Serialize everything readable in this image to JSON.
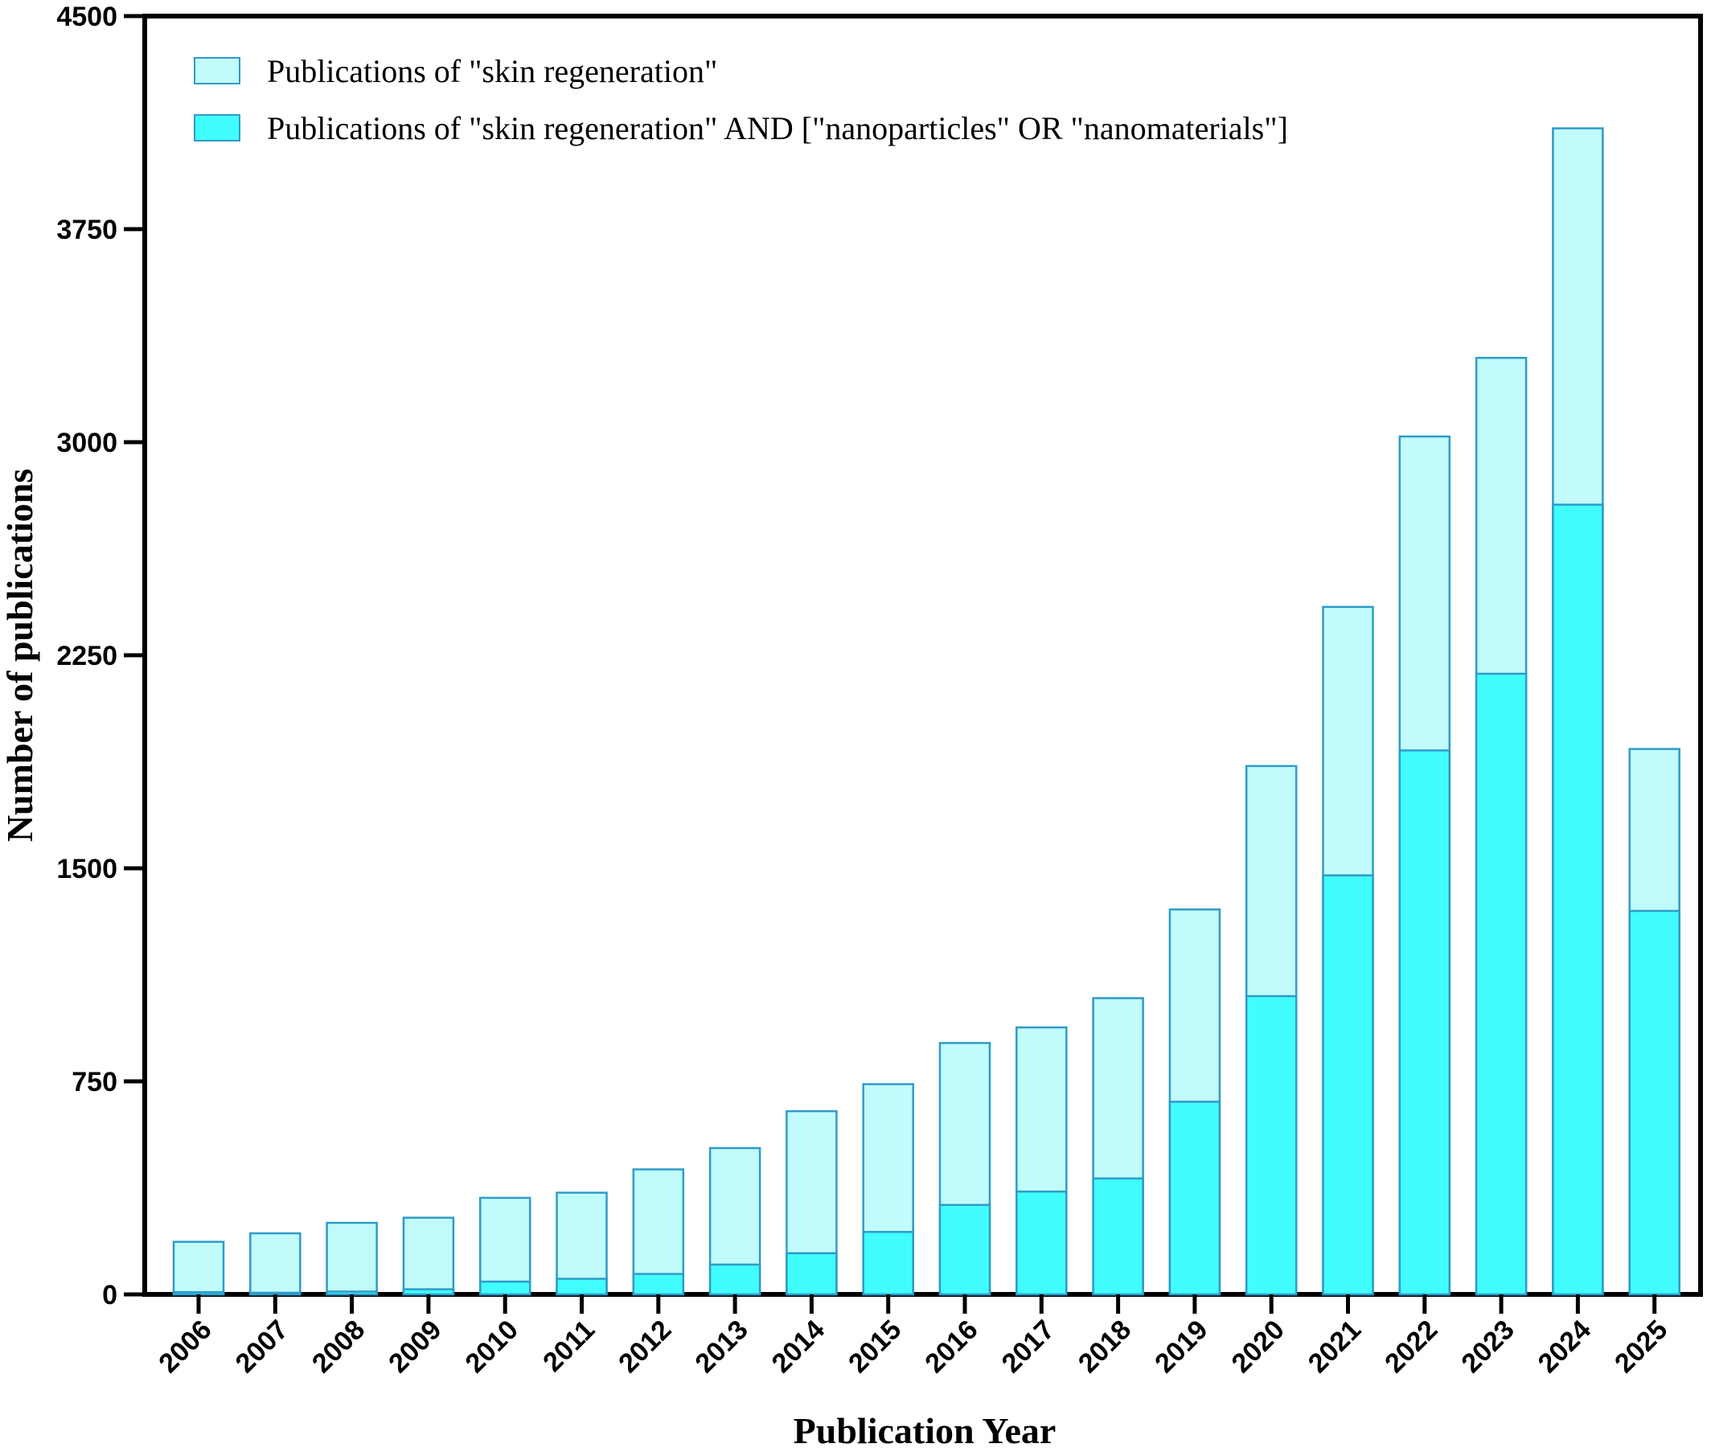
{
  "chart_data": {
    "type": "bar",
    "stacked": "overlay",
    "xlabel": "Publication Year",
    "ylabel": "Number of publications",
    "ylim": [
      0,
      4500
    ],
    "yticks": [
      "0",
      "750",
      "1500",
      "2250",
      "3000",
      "3750",
      "4500"
    ],
    "categories": [
      "2006",
      "2007",
      "2008",
      "2009",
      "2010",
      "2011",
      "2012",
      "2013",
      "2014",
      "2015",
      "2016",
      "2017",
      "2018",
      "2019",
      "2020",
      "2021",
      "2022",
      "2023",
      "2024",
      "2025"
    ],
    "series": [
      {
        "name": "Publications of \"skin regeneration\"",
        "color": "#c2fbfc",
        "values": [
          185,
          215,
          252,
          270,
          340,
          358,
          440,
          515,
          645,
          740,
          885,
          940,
          1043,
          1355,
          1860,
          2420,
          3020,
          3297,
          4105,
          1920
        ]
      },
      {
        "name": "Publications of \"skin regeneration\" AND [\"nanoparticles\" OR \"nanomaterials\"]",
        "color": "#41fdfd",
        "values": [
          8,
          6,
          10,
          18,
          45,
          55,
          72,
          105,
          145,
          220,
          315,
          362,
          408,
          678,
          1050,
          1475,
          1915,
          2185,
          2780,
          1350
        ]
      }
    ],
    "legend_position": "top-left",
    "edge_color": "#2e9bc8",
    "grid": false
  }
}
